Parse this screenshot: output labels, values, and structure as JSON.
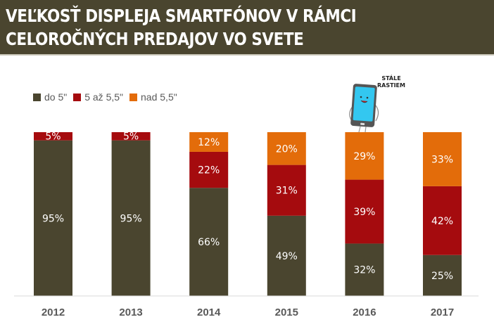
{
  "header": {
    "title_line1": "VEĽKOSŤ DISPLEJA SMARTFÓNOV V RÁMCI",
    "title_line2": "CELOROČNÝCH PREDAJOV VO SVETE"
  },
  "callout": {
    "line1": "STÁLE",
    "line2": "RASTIEM",
    "icon": "smiling-smartphone-icon"
  },
  "colors": {
    "do5": "#4a452f",
    "mid": "#a50b0e",
    "over": "#e36c0a"
  },
  "chart_data": {
    "type": "bar",
    "stacked": true,
    "title": "VEĽKOSŤ DISPLEJA SMARTFÓNOV V RÁMCI CELOROČNÝCH PREDAJOV VO SVETE",
    "xlabel": "",
    "ylabel": "",
    "ylim": [
      0,
      100
    ],
    "grid": false,
    "legend_position": "top-left",
    "categories": [
      "2012",
      "2013",
      "2014",
      "2015",
      "2016",
      "2017"
    ],
    "series": [
      {
        "name": "do 5\"",
        "color": "#4a452f",
        "values": [
          95,
          95,
          66,
          49,
          32,
          25
        ]
      },
      {
        "name": "5 až 5,5\"",
        "color": "#a50b0e",
        "values": [
          5,
          5,
          22,
          31,
          39,
          42
        ]
      },
      {
        "name": "nad 5,5\"",
        "color": "#e36c0a",
        "values": [
          0,
          0,
          12,
          20,
          29,
          33
        ]
      }
    ],
    "data_labels_suffix": "%"
  }
}
